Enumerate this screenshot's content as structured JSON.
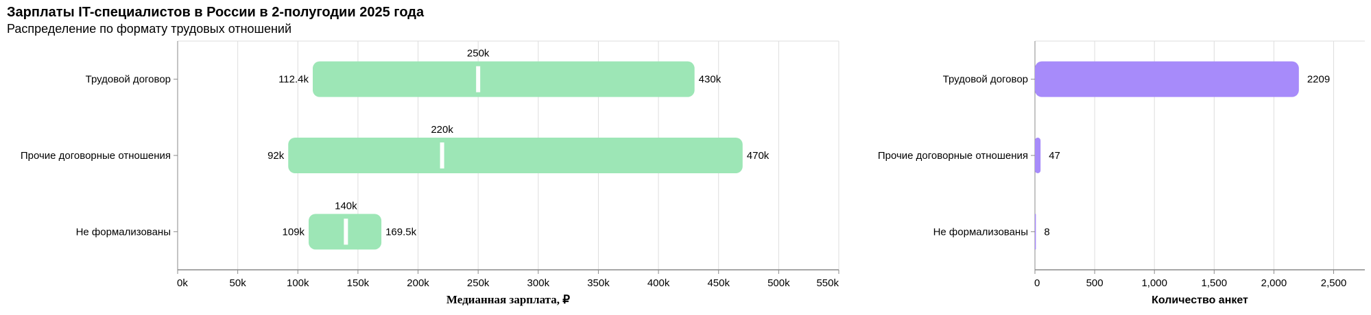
{
  "title": "Зарплаты IT-специалистов в России в 2-полугодии 2025 года",
  "subtitle": "Распределение по формату трудовых отношений",
  "colors": {
    "range_bar": "#9de6b6",
    "count_bar": "#a78bfa",
    "median_tick": "#ffffff",
    "grid": "#dddddd",
    "axis": "#888888"
  },
  "chart_data": [
    {
      "type": "bar",
      "subtype": "range-with-median",
      "orientation": "horizontal",
      "categories": [
        "Трудовой договор",
        "Прочие договорные отношения",
        "Не формализованы"
      ],
      "series": [
        {
          "key": "low",
          "values": [
            112400,
            92000,
            109000
          ],
          "labels": [
            "112.4k",
            "92k",
            "109k"
          ]
        },
        {
          "key": "high",
          "values": [
            430000,
            470000,
            169500
          ],
          "labels": [
            "430k",
            "470k",
            "169.5k"
          ]
        },
        {
          "key": "median",
          "values": [
            250000,
            220000,
            140000
          ],
          "labels": [
            "250k",
            "220k",
            "140k"
          ]
        }
      ],
      "xlabel": "Медианная зарплата, ₽",
      "ylabel": "",
      "xlim": [
        0,
        550000
      ],
      "xticks": [
        "0k",
        "50k",
        "100k",
        "150k",
        "200k",
        "250k",
        "300k",
        "350k",
        "400k",
        "450k",
        "500k",
        "550k"
      ],
      "grid": true
    },
    {
      "type": "bar",
      "orientation": "horizontal",
      "categories": [
        "Трудовой договор",
        "Прочие договорные отношения",
        "Не формализованы"
      ],
      "values": [
        2209,
        47,
        8
      ],
      "labels": [
        "2209",
        "47",
        "8"
      ],
      "xlabel": "Количество анкет",
      "ylabel": "",
      "xlim": [
        0,
        2761
      ],
      "xticks": [
        "0",
        "500",
        "1,000",
        "1,500",
        "2,000",
        "2,500"
      ],
      "grid": true
    }
  ]
}
